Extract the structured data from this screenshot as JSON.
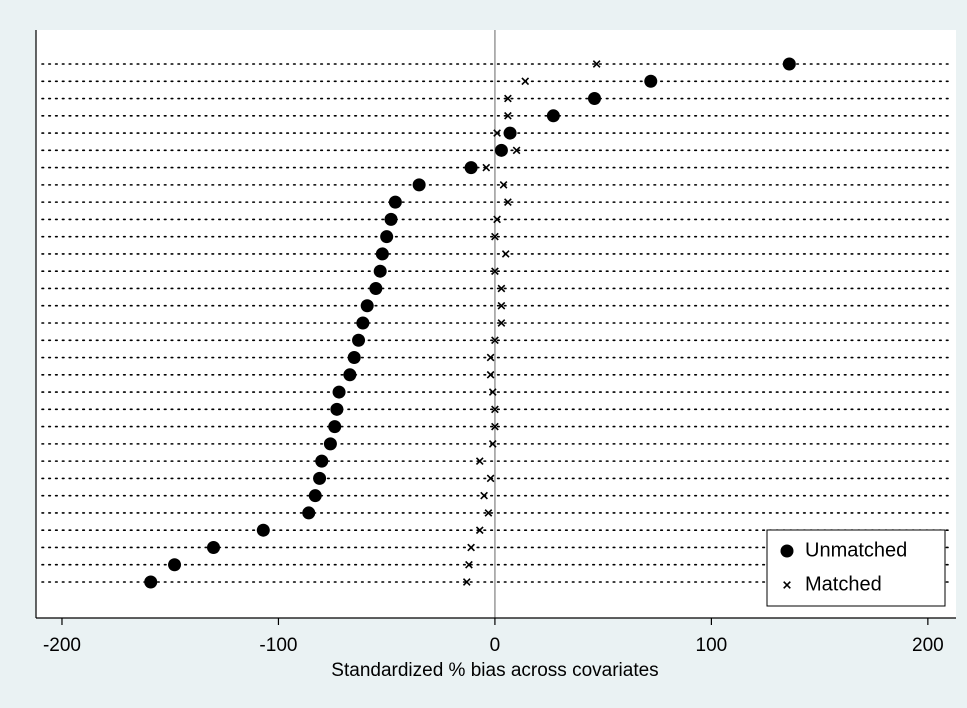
{
  "chart_data": {
    "type": "dot",
    "x_label": "Standardized % bias across covariates",
    "categories": [
      null,
      null,
      null,
      null,
      null,
      null,
      null,
      null,
      null,
      null,
      null,
      null,
      null,
      null,
      null,
      null,
      null,
      null,
      null,
      null,
      null,
      null,
      null,
      null,
      null,
      null,
      null,
      null,
      null,
      null,
      null
    ],
    "series": [
      {
        "name": "Unmatched",
        "color": "#000000",
        "marker": "circle",
        "values": [
          136,
          72,
          46,
          27,
          7,
          3,
          -11,
          -35,
          -46,
          -48,
          -50,
          -52,
          -53,
          -55,
          -59,
          -61,
          -63,
          -65,
          -67,
          -72,
          -73,
          -74,
          -76,
          -80,
          -81,
          -83,
          -86,
          -107,
          -130,
          -148,
          -159
        ]
      },
      {
        "name": "Matched",
        "color": "#000000",
        "marker": "x",
        "values": [
          47,
          14,
          6,
          6,
          1,
          10,
          -4,
          4,
          6,
          1,
          0,
          5,
          0,
          3,
          3,
          3,
          0,
          -2,
          -2,
          -1,
          0,
          0,
          -1,
          -7,
          -2,
          -5,
          -3,
          -7,
          -11,
          -12,
          -13
        ]
      }
    ],
    "xlim": [
      -212,
      213
    ],
    "xticks": [
      -200,
      -100,
      0,
      100,
      200
    ],
    "reference_line": 0,
    "legend": "lower right"
  }
}
